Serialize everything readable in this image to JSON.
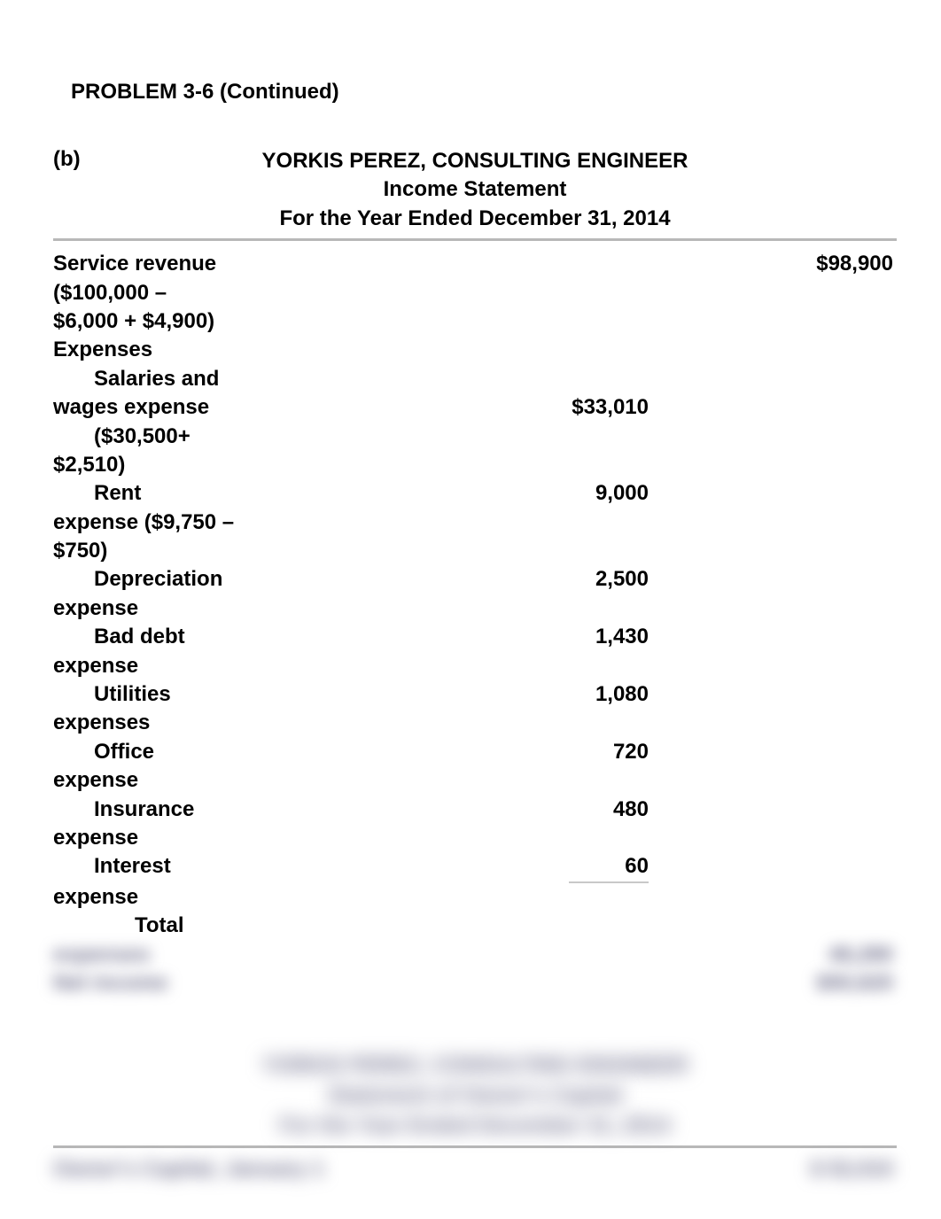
{
  "problem_title": "PROBLEM 3-6 (Continued)",
  "part_label": "(b)",
  "header": {
    "company": "YORKIS PEREZ, CONSULTING ENGINEER",
    "statement": "Income Statement",
    "period": "For the Year Ended December 31, 2014"
  },
  "revenue": {
    "label_line1": "Service revenue",
    "label_line2": "($100,000 –",
    "label_line3": "$6,000 + $4,900)",
    "amount": "$98,900"
  },
  "expenses_label": "Expenses",
  "expenses": [
    {
      "lines": [
        "Salaries and",
        "wages expense",
        "($30,500+",
        "$2,510)"
      ],
      "indent_pattern": [
        1,
        0,
        1,
        0
      ],
      "amount_line_index": 1,
      "amount": "$33,010"
    },
    {
      "lines": [
        "Rent",
        "expense ($9,750 –",
        "$750)"
      ],
      "indent_pattern": [
        1,
        0,
        0
      ],
      "amount_line_index": 0,
      "amount": "9,000"
    },
    {
      "lines": [
        "Depreciation",
        "expense"
      ],
      "indent_pattern": [
        1,
        0
      ],
      "amount_line_index": 0,
      "amount": "2,500"
    },
    {
      "lines": [
        "Bad debt",
        "expense"
      ],
      "indent_pattern": [
        1,
        0
      ],
      "amount_line_index": 0,
      "amount": "1,430"
    },
    {
      "lines": [
        "Utilities",
        "expenses"
      ],
      "indent_pattern": [
        1,
        0
      ],
      "amount_line_index": 0,
      "amount": "1,080"
    },
    {
      "lines": [
        "Office",
        "expense"
      ],
      "indent_pattern": [
        1,
        0
      ],
      "amount_line_index": 0,
      "amount": "720"
    },
    {
      "lines": [
        "Insurance",
        "expense"
      ],
      "indent_pattern": [
        1,
        0
      ],
      "amount_line_index": 0,
      "amount": "480"
    },
    {
      "lines": [
        "Interest",
        "expense"
      ],
      "indent_pattern": [
        1,
        0
      ],
      "amount_line_index": 0,
      "amount": "60",
      "underline": true
    }
  ],
  "total_label": "Total",
  "blurred_rows": [
    {
      "label": "expenses",
      "right": "48,280"
    },
    {
      "label": "Net income",
      "right": "$50,620"
    }
  ],
  "blurred_header": {
    "line1": "YORKIS PEREZ, CONSULTING ENGINEER",
    "line2": "Statement of Owner's Capital",
    "line3": "For the Year Ended December 31, 2014"
  },
  "blurred_bottom": {
    "left": "Owner's Capital, January 1",
    "right": "$ 52,010"
  },
  "colors": {
    "text": "#000000",
    "rule": "#b8b8b8",
    "blur_text": "#6a6a88",
    "background": "#ffffff"
  },
  "fonts": {
    "family": "Arial",
    "base_size_pt": 18,
    "weight": "bold"
  }
}
